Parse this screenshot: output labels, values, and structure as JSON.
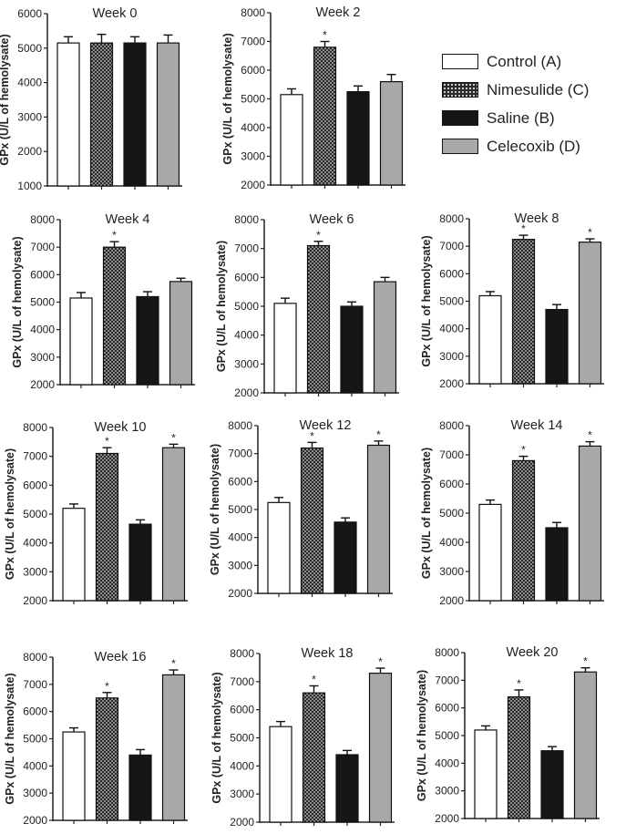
{
  "ylabel": "GPx (U/L of hemolysate)",
  "legend": [
    {
      "label": "Control  (A)",
      "fill": "white"
    },
    {
      "label": "Nimesulide  (C)",
      "fill": "dots"
    },
    {
      "label": "Saline  (B)",
      "fill": "black"
    },
    {
      "label": "Celecoxib  (D)",
      "fill": "gray"
    }
  ],
  "colors": {
    "control": "#ffffff",
    "nimesulide": "#2a2a2a",
    "saline": "#161616",
    "celecoxib": "#a8a8a8",
    "axis": "#222222"
  },
  "chart_data": [
    {
      "type": "bar",
      "title": "Week 0",
      "ylabel": "GPx (U/L of hemolysate)",
      "ylim": [
        1000,
        6000
      ],
      "yticks": [
        1000,
        2000,
        3000,
        4000,
        5000,
        6000
      ],
      "series": [
        {
          "name": "Control (A)",
          "values": [
            5150
          ]
        },
        {
          "name": "Nimesulide (C)",
          "values": [
            5150
          ]
        },
        {
          "name": "Saline (B)",
          "values": [
            5150
          ]
        },
        {
          "name": "Celecoxib (D)",
          "values": [
            5150
          ]
        }
      ],
      "errors": [
        180,
        250,
        180,
        230
      ],
      "significant": [
        false,
        false,
        false,
        false
      ]
    },
    {
      "type": "bar",
      "title": "Week 2",
      "ylabel": "GPx (U/L of hemolysate)",
      "ylim": [
        2000,
        8000
      ],
      "yticks": [
        2000,
        3000,
        4000,
        5000,
        6000,
        7000,
        8000
      ],
      "series": [
        {
          "name": "Control (A)",
          "values": [
            5150
          ]
        },
        {
          "name": "Nimesulide (C)",
          "values": [
            6800
          ]
        },
        {
          "name": "Saline (B)",
          "values": [
            5250
          ]
        },
        {
          "name": "Celecoxib (D)",
          "values": [
            5600
          ]
        }
      ],
      "errors": [
        200,
        200,
        200,
        250
      ],
      "significant": [
        false,
        true,
        false,
        false
      ]
    },
    {
      "type": "bar",
      "title": "Week 4",
      "ylabel": "GPx (U/L of hemolysate)",
      "ylim": [
        2000,
        8000
      ],
      "yticks": [
        2000,
        3000,
        4000,
        5000,
        6000,
        7000,
        8000
      ],
      "series": [
        {
          "name": "Control (A)",
          "values": [
            5150
          ]
        },
        {
          "name": "Nimesulide (C)",
          "values": [
            7000
          ]
        },
        {
          "name": "Saline (B)",
          "values": [
            5200
          ]
        },
        {
          "name": "Celecoxib (D)",
          "values": [
            5750
          ]
        }
      ],
      "errors": [
        200,
        200,
        180,
        120
      ],
      "significant": [
        false,
        true,
        false,
        false
      ]
    },
    {
      "type": "bar",
      "title": "Week 6",
      "ylabel": "GPx (U/L of hemolysate)",
      "ylim": [
        2000,
        8000
      ],
      "yticks": [
        2000,
        3000,
        4000,
        5000,
        6000,
        7000,
        8000
      ],
      "series": [
        {
          "name": "Control (A)",
          "values": [
            5100
          ]
        },
        {
          "name": "Nimesulide (C)",
          "values": [
            7100
          ]
        },
        {
          "name": "Saline (B)",
          "values": [
            5000
          ]
        },
        {
          "name": "Celecoxib (D)",
          "values": [
            5850
          ]
        }
      ],
      "errors": [
        180,
        150,
        150,
        150
      ],
      "significant": [
        false,
        true,
        false,
        false
      ]
    },
    {
      "type": "bar",
      "title": "Week 8",
      "ylabel": "GPx (U/L of hemolysate)",
      "ylim": [
        2000,
        8000
      ],
      "yticks": [
        2000,
        3000,
        4000,
        5000,
        6000,
        7000,
        8000
      ],
      "series": [
        {
          "name": "Control (A)",
          "values": [
            5200
          ]
        },
        {
          "name": "Nimesulide (C)",
          "values": [
            7250
          ]
        },
        {
          "name": "Saline (B)",
          "values": [
            4700
          ]
        },
        {
          "name": "Celecoxib (D)",
          "values": [
            7150
          ]
        }
      ],
      "errors": [
        150,
        150,
        180,
        120
      ],
      "significant": [
        false,
        true,
        false,
        true
      ]
    },
    {
      "type": "bar",
      "title": "Week 10",
      "ylabel": "GPx (U/L of hemolysate)",
      "ylim": [
        2000,
        8000
      ],
      "yticks": [
        2000,
        3000,
        4000,
        5000,
        6000,
        7000,
        8000
      ],
      "series": [
        {
          "name": "Control (A)",
          "values": [
            5200
          ]
        },
        {
          "name": "Nimesulide (C)",
          "values": [
            7100
          ]
        },
        {
          "name": "Saline (B)",
          "values": [
            4650
          ]
        },
        {
          "name": "Celecoxib (D)",
          "values": [
            7300
          ]
        }
      ],
      "errors": [
        150,
        200,
        150,
        120
      ],
      "significant": [
        false,
        true,
        false,
        true
      ]
    },
    {
      "type": "bar",
      "title": "Week 12",
      "ylabel": "GPx (U/L of hemolysate)",
      "ylim": [
        2000,
        8000
      ],
      "yticks": [
        2000,
        3000,
        4000,
        5000,
        6000,
        7000,
        8000
      ],
      "series": [
        {
          "name": "Control (A)",
          "values": [
            5250
          ]
        },
        {
          "name": "Nimesulide (C)",
          "values": [
            7200
          ]
        },
        {
          "name": "Saline (B)",
          "values": [
            4550
          ]
        },
        {
          "name": "Celecoxib (D)",
          "values": [
            7300
          ]
        }
      ],
      "errors": [
        180,
        200,
        150,
        150
      ],
      "significant": [
        false,
        true,
        false,
        true
      ]
    },
    {
      "type": "bar",
      "title": "Week 14",
      "ylabel": "GPx (U/L of hemolysate)",
      "ylim": [
        2000,
        8000
      ],
      "yticks": [
        2000,
        3000,
        4000,
        5000,
        6000,
        7000,
        8000
      ],
      "series": [
        {
          "name": "Control (A)",
          "values": [
            5300
          ]
        },
        {
          "name": "Nimesulide (C)",
          "values": [
            6800
          ]
        },
        {
          "name": "Saline (B)",
          "values": [
            4500
          ]
        },
        {
          "name": "Celecoxib (D)",
          "values": [
            7300
          ]
        }
      ],
      "errors": [
        150,
        150,
        180,
        150
      ],
      "significant": [
        false,
        true,
        false,
        true
      ]
    },
    {
      "type": "bar",
      "title": "Week 16",
      "ylabel": "GPx (U/L of hemolysate)",
      "ylim": [
        2000,
        8000
      ],
      "yticks": [
        2000,
        3000,
        4000,
        5000,
        6000,
        7000,
        8000
      ],
      "series": [
        {
          "name": "Control (A)",
          "values": [
            5250
          ]
        },
        {
          "name": "Nimesulide (C)",
          "values": [
            6500
          ]
        },
        {
          "name": "Saline (B)",
          "values": [
            4400
          ]
        },
        {
          "name": "Celecoxib (D)",
          "values": [
            7350
          ]
        }
      ],
      "errors": [
        150,
        200,
        200,
        180
      ],
      "significant": [
        false,
        true,
        false,
        true
      ]
    },
    {
      "type": "bar",
      "title": "Week 18",
      "ylabel": "GPx (U/L of hemolysate)",
      "ylim": [
        2000,
        8000
      ],
      "yticks": [
        2000,
        3000,
        4000,
        5000,
        6000,
        7000,
        8000
      ],
      "series": [
        {
          "name": "Control (A)",
          "values": [
            5400
          ]
        },
        {
          "name": "Nimesulide (C)",
          "values": [
            6600
          ]
        },
        {
          "name": "Saline (B)",
          "values": [
            4400
          ]
        },
        {
          "name": "Celecoxib (D)",
          "values": [
            7300
          ]
        }
      ],
      "errors": [
        180,
        250,
        150,
        180
      ],
      "significant": [
        false,
        true,
        false,
        true
      ]
    },
    {
      "type": "bar",
      "title": "Week 20",
      "ylabel": "GPx (U/L of hemolysate)",
      "ylim": [
        2000,
        8000
      ],
      "yticks": [
        2000,
        3000,
        4000,
        5000,
        6000,
        7000,
        8000
      ],
      "series": [
        {
          "name": "Control (A)",
          "values": [
            5200
          ]
        },
        {
          "name": "Nimesulide (C)",
          "values": [
            6400
          ]
        },
        {
          "name": "Saline (B)",
          "values": [
            4450
          ]
        },
        {
          "name": "Celecoxib (D)",
          "values": [
            7300
          ]
        }
      ],
      "errors": [
        150,
        250,
        150,
        150
      ],
      "significant": [
        false,
        true,
        false,
        true
      ]
    }
  ]
}
